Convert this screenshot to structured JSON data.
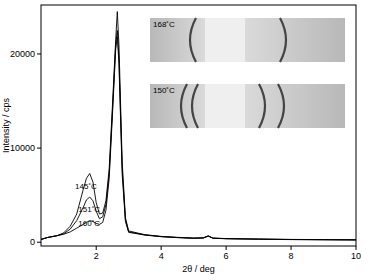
{
  "chart_data": {
    "type": "line",
    "x_label": "2θ / deg",
    "y_label": "Intensity / cps",
    "x": [
      0.3,
      0.5,
      0.8,
      1.0,
      1.2,
      1.4,
      1.6,
      1.7,
      1.8,
      1.9,
      2.0,
      2.1,
      2.2,
      2.3,
      2.4,
      2.5,
      2.6,
      2.65,
      2.7,
      2.8,
      2.9,
      3.0,
      3.5,
      4,
      4.5,
      5,
      5.3,
      5.45,
      5.6,
      6,
      7,
      8,
      9,
      10
    ],
    "series": [
      {
        "color": "#000000",
        "values": [
          300,
          500,
          700,
          1000,
          1700,
          3000,
          5600,
          6800,
          7300,
          6400,
          4200,
          3000,
          3100,
          4400,
          7800,
          14500,
          21500,
          24500,
          21000,
          8500,
          2600,
          1200,
          800,
          620,
          520,
          440,
          470,
          680,
          440,
          390,
          340,
          300,
          280,
          260
        ]
      },
      {
        "color": "#000000",
        "values": [
          300,
          500,
          700,
          900,
          1400,
          2300,
          3700,
          4500,
          4800,
          4400,
          3300,
          2500,
          2700,
          4000,
          7300,
          14000,
          21000,
          22500,
          19500,
          7800,
          2400,
          1100,
          780,
          600,
          500,
          430,
          460,
          660,
          430,
          380,
          330,
          290,
          270,
          250
        ]
      },
      {
        "color": "#000000",
        "values": [
          300,
          500,
          700,
          850,
          1100,
          1500,
          1900,
          2100,
          2300,
          2200,
          2000,
          1900,
          2100,
          3400,
          6800,
          13500,
          20500,
          21800,
          19000,
          7200,
          2200,
          1050,
          760,
          590,
          490,
          420,
          450,
          640,
          420,
          370,
          320,
          280,
          260,
          240
        ]
      }
    ],
    "xlim": [
      0.3,
      10
    ],
    "ylim": [
      -400,
      25200
    ],
    "xticks": [
      2,
      4,
      6,
      8,
      10
    ],
    "yticks": [
      0,
      10000,
      20000
    ],
    "grid": false,
    "annotations": [
      {
        "text": "145˚C",
        "x": 1.35,
        "y": 5700
      },
      {
        "text": "151˚C",
        "x": 1.45,
        "y": 3200
      },
      {
        "text": "160˚C",
        "x": 1.45,
        "y": 1700
      }
    ],
    "insets": [
      {
        "label": "168˚C"
      },
      {
        "label": "150˚C"
      }
    ]
  }
}
